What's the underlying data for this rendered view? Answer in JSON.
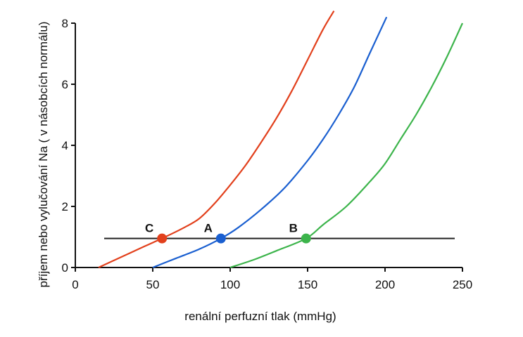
{
  "chart_data": {
    "type": "line",
    "xlabel": "renální perfuzní tlak (mmHg)",
    "ylabel": "příjem nebo vylučování Na ( v násobcích normálu)",
    "xlim": [
      0,
      250
    ],
    "ylim": [
      0,
      8
    ],
    "x_ticks": [
      "0",
      "50",
      "100",
      "150",
      "200",
      "250"
    ],
    "y_ticks": [
      "0",
      "2",
      "4",
      "6",
      "8"
    ],
    "grid": false,
    "series": [
      {
        "color": "#e2401c",
        "x": [
          15,
          30,
          45,
          58,
          70,
          80,
          90,
          100,
          110,
          120,
          130,
          140,
          150,
          160,
          167
        ],
        "y": [
          0,
          0.35,
          0.7,
          1.0,
          1.3,
          1.6,
          2.1,
          2.7,
          3.35,
          4.1,
          4.9,
          5.8,
          6.8,
          7.8,
          8.4
        ]
      },
      {
        "color": "#1a5fd0",
        "x": [
          50,
          65,
          80,
          94,
          105,
          120,
          135,
          150,
          160,
          170,
          180,
          190,
          201
        ],
        "y": [
          0,
          0.3,
          0.6,
          0.95,
          1.3,
          1.9,
          2.6,
          3.5,
          4.2,
          5.0,
          5.9,
          7.0,
          8.2
        ]
      },
      {
        "color": "#3cb44b",
        "x": [
          100,
          115,
          130,
          149,
          160,
          175,
          190,
          200,
          210,
          220,
          230,
          240,
          250
        ],
        "y": [
          0,
          0.25,
          0.55,
          0.95,
          1.4,
          2.0,
          2.8,
          3.4,
          4.2,
          5.0,
          5.9,
          6.9,
          8.0
        ]
      }
    ],
    "reference_line": {
      "y": 0.95,
      "x": [
        15,
        245
      ],
      "color": "#222222"
    },
    "points": [
      {
        "label": "C",
        "x": 56,
        "y": 0.95,
        "color": "#e2401c"
      },
      {
        "label": "A",
        "x": 94,
        "y": 0.95,
        "color": "#1a5fd0"
      },
      {
        "label": "B",
        "x": 149,
        "y": 0.95,
        "color": "#3cb44b"
      }
    ]
  }
}
